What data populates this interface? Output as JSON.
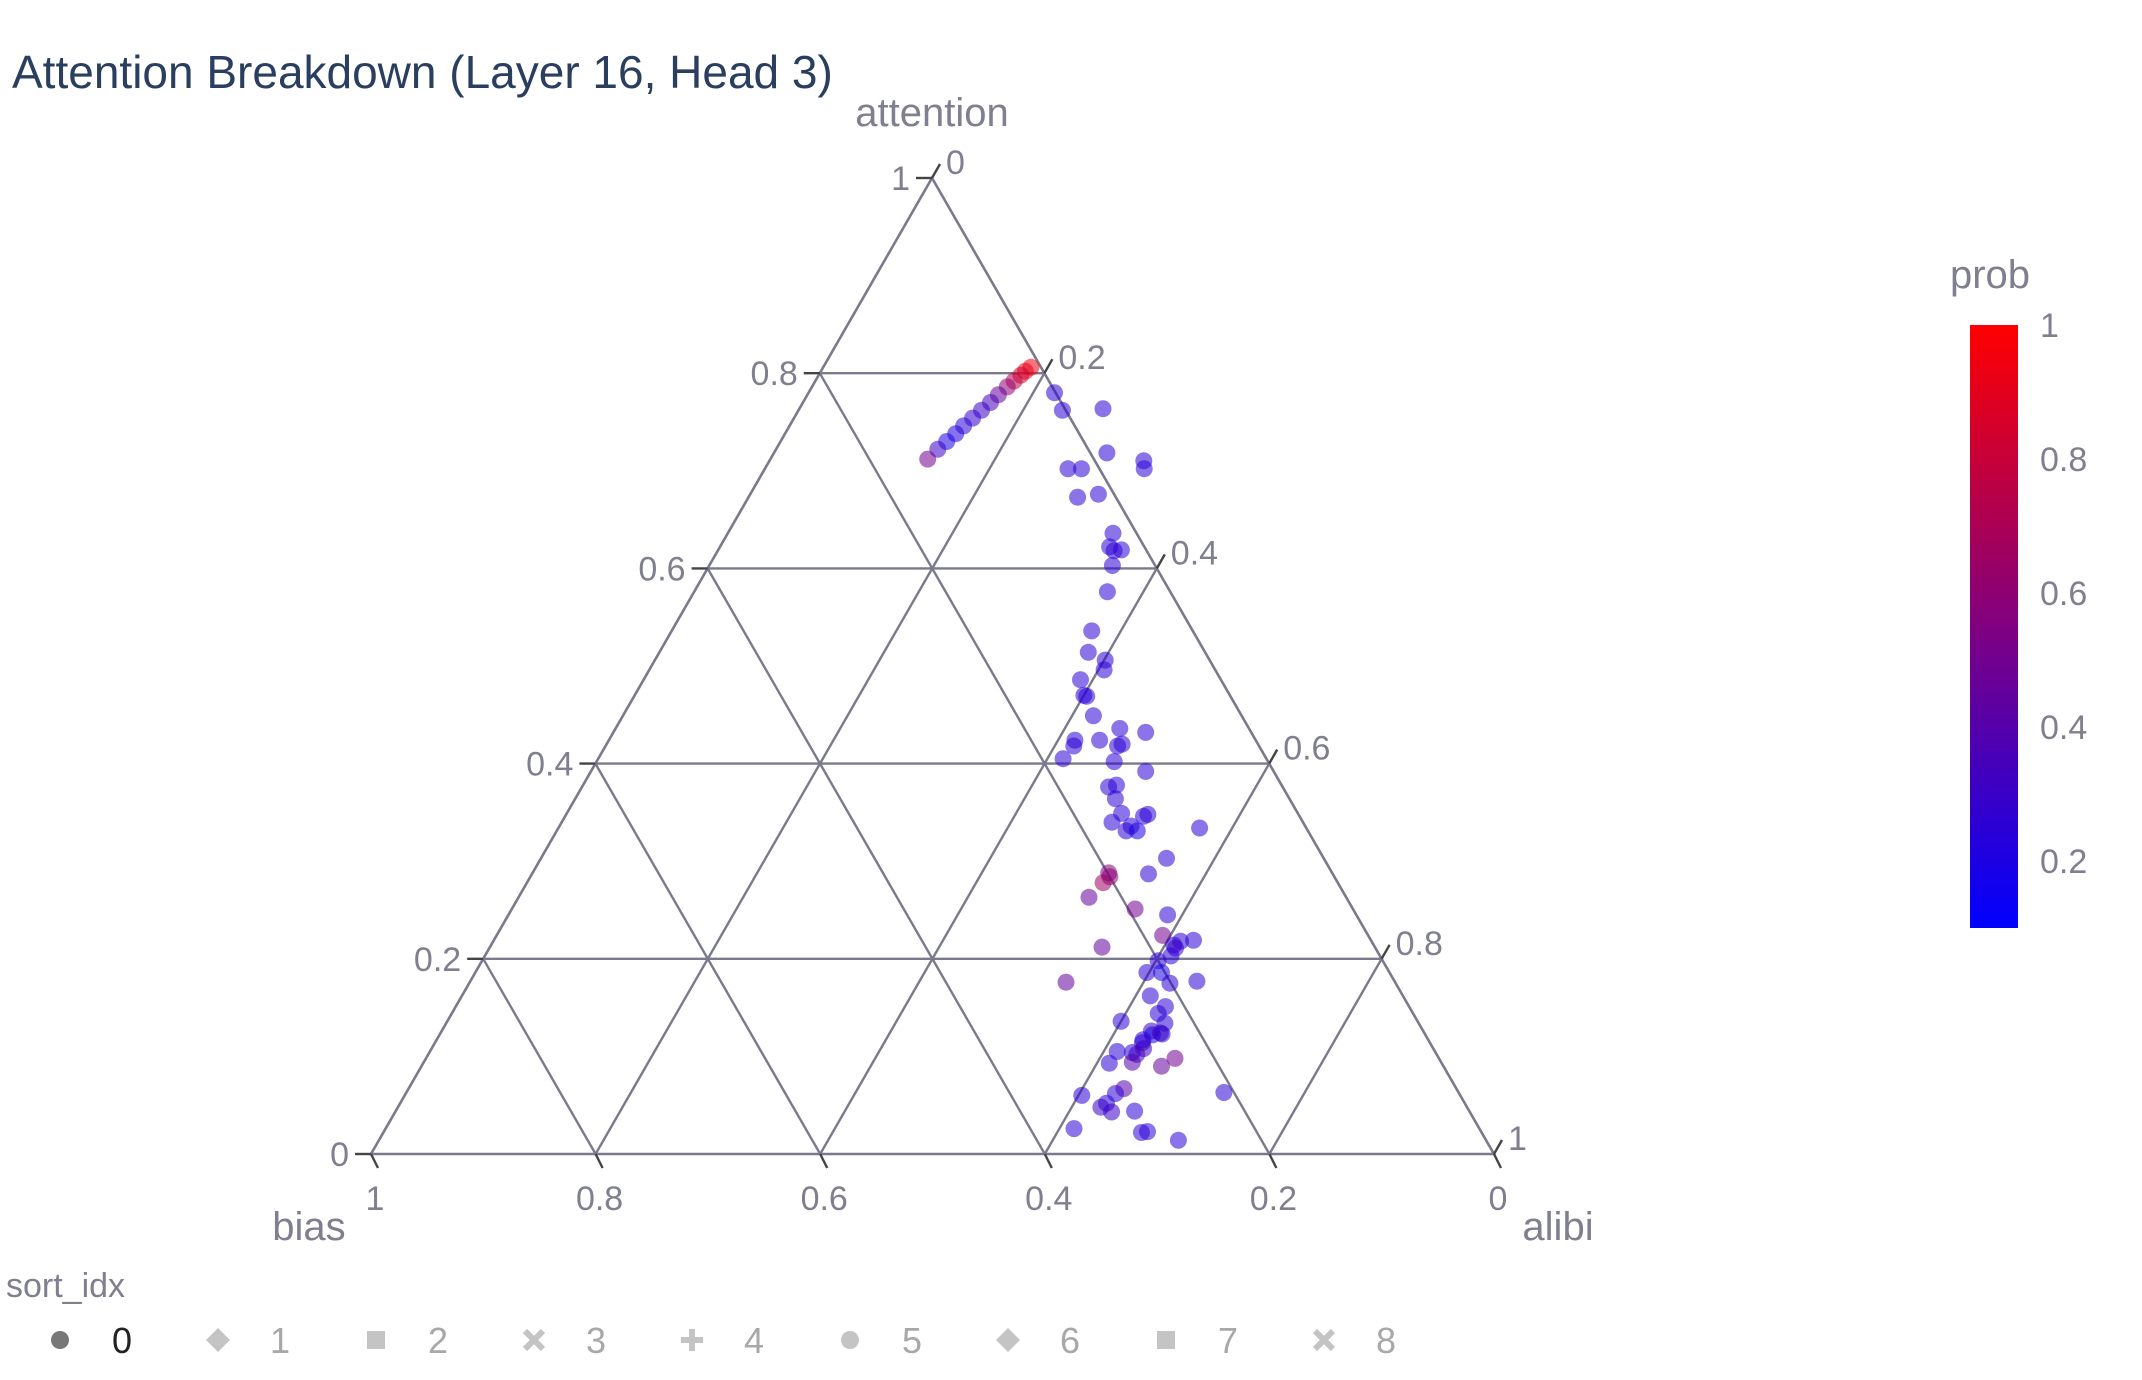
{
  "chart_data": {
    "type": "scatter",
    "subtype": "ternary",
    "title": "Attention Breakdown (Layer 16, Head 3)",
    "axes": {
      "a": {
        "label": "attention",
        "range": [
          0,
          1
        ]
      },
      "b": {
        "label": "bias",
        "range": [
          0,
          1
        ]
      },
      "c": {
        "label": "alibi",
        "range": [
          0,
          1
        ]
      }
    },
    "ticks": {
      "a": [
        "0",
        "0.2",
        "0.4",
        "0.6",
        "0.8",
        "1"
      ],
      "b": [
        "1",
        "0.8",
        "0.6",
        "0.4",
        "0.2",
        "0"
      ],
      "c": [
        "0",
        "0.2",
        "0.4",
        "0.6",
        "0.8",
        "1"
      ]
    },
    "grid": true,
    "colorbar": {
      "title": "prob",
      "range": [
        0.1,
        1
      ],
      "ticks": [
        "1",
        "0.8",
        "0.6",
        "0.4",
        "0.2"
      ],
      "tick_values": [
        1,
        0.8,
        0.6,
        0.4,
        0.2
      ],
      "colors": [
        "#0000ff",
        "#ff0000"
      ]
    },
    "legend": {
      "title": "sort_idx",
      "placement": "bottom-left",
      "items": [
        {
          "label": "0",
          "symbol": "circle",
          "active": true
        },
        {
          "label": "1",
          "symbol": "diamond",
          "active": false
        },
        {
          "label": "2",
          "symbol": "square",
          "active": false
        },
        {
          "label": "3",
          "symbol": "x",
          "active": false
        },
        {
          "label": "4",
          "symbol": "cross",
          "active": false
        },
        {
          "label": "5",
          "symbol": "circle",
          "active": false
        },
        {
          "label": "6",
          "symbol": "diamond",
          "active": false
        },
        {
          "label": "7",
          "symbol": "square",
          "active": false
        },
        {
          "label": "8",
          "symbol": "x",
          "active": false
        }
      ]
    },
    "points": [
      {
        "a": 0.806,
        "c": 0.185,
        "prob": 0.95
      },
      {
        "a": 0.802,
        "c": 0.182,
        "prob": 0.9
      },
      {
        "a": 0.798,
        "c": 0.18,
        "prob": 0.85
      },
      {
        "a": 0.792,
        "c": 0.177,
        "prob": 0.75
      },
      {
        "a": 0.786,
        "c": 0.174,
        "prob": 0.6
      },
      {
        "a": 0.778,
        "c": 0.17,
        "prob": 0.45
      },
      {
        "a": 0.77,
        "c": 0.167,
        "prob": 0.35
      },
      {
        "a": 0.762,
        "c": 0.163,
        "prob": 0.3
      },
      {
        "a": 0.754,
        "c": 0.159,
        "prob": 0.28
      },
      {
        "a": 0.746,
        "c": 0.155,
        "prob": 0.25
      },
      {
        "a": 0.738,
        "c": 0.152,
        "prob": 0.22
      },
      {
        "a": 0.73,
        "c": 0.148,
        "prob": 0.2
      },
      {
        "a": 0.722,
        "c": 0.144,
        "prob": 0.3
      },
      {
        "a": 0.712,
        "c": 0.14,
        "prob": 0.5
      },
      {
        "a": 0.818,
        "c": 0.228,
        "prob": 0.25
      },
      {
        "a": 0.78,
        "c": 0.219,
        "prob": 0.25
      },
      {
        "a": 0.78,
        "c": 0.279,
        "prob": 0.25
      },
      {
        "a": 0.762,
        "c": 0.235,
        "prob": 0.25
      },
      {
        "a": 0.766,
        "c": 0.288,
        "prob": 0.25
      },
      {
        "a": 0.742,
        "c": 0.278,
        "prob": 0.25
      },
      {
        "a": 0.702,
        "c": 0.27,
        "prob": 0.25
      },
      {
        "a": 0.702,
        "c": 0.282,
        "prob": 0.25
      },
      {
        "a": 0.673,
        "c": 0.293,
        "prob": 0.25
      },
      {
        "a": 0.676,
        "c": 0.31,
        "prob": 0.25
      },
      {
        "a": 0.636,
        "c": 0.343,
        "prob": 0.25
      },
      {
        "a": 0.622,
        "c": 0.347,
        "prob": 0.25
      },
      {
        "a": 0.618,
        "c": 0.353,
        "prob": 0.25
      },
      {
        "a": 0.619,
        "c": 0.359,
        "prob": 0.25
      },
      {
        "a": 0.603,
        "c": 0.359,
        "prob": 0.25
      },
      {
        "a": 0.576,
        "c": 0.368,
        "prob": 0.25
      },
      {
        "a": 0.536,
        "c": 0.374,
        "prob": 0.25
      },
      {
        "a": 0.514,
        "c": 0.382,
        "prob": 0.25
      },
      {
        "a": 0.486,
        "c": 0.389,
        "prob": 0.25
      },
      {
        "a": 0.506,
        "c": 0.401,
        "prob": 0.25
      },
      {
        "a": 0.496,
        "c": 0.405,
        "prob": 0.25
      },
      {
        "a": 0.47,
        "c": 0.4,
        "prob": 0.25
      },
      {
        "a": 0.469,
        "c": 0.403,
        "prob": 0.25
      },
      {
        "a": 0.449,
        "c": 0.419,
        "prob": 0.25
      },
      {
        "a": 0.424,
        "c": 0.415,
        "prob": 0.25
      },
      {
        "a": 0.418,
        "c": 0.417,
        "prob": 0.25
      },
      {
        "a": 0.405,
        "c": 0.414,
        "prob": 0.25
      },
      {
        "a": 0.424,
        "c": 0.437,
        "prob": 0.25
      },
      {
        "a": 0.436,
        "c": 0.449,
        "prob": 0.25
      },
      {
        "a": 0.432,
        "c": 0.474,
        "prob": 0.25
      },
      {
        "a": 0.418,
        "c": 0.456,
        "prob": 0.25
      },
      {
        "a": 0.42,
        "c": 0.459,
        "prob": 0.25
      },
      {
        "a": 0.402,
        "c": 0.461,
        "prob": 0.25
      },
      {
        "a": 0.392,
        "c": 0.494,
        "prob": 0.25
      },
      {
        "a": 0.376,
        "c": 0.469,
        "prob": 0.25
      },
      {
        "a": 0.378,
        "c": 0.475,
        "prob": 0.25
      },
      {
        "a": 0.364,
        "c": 0.481,
        "prob": 0.25
      },
      {
        "a": 0.349,
        "c": 0.494,
        "prob": 0.25
      },
      {
        "a": 0.34,
        "c": 0.49,
        "prob": 0.25
      },
      {
        "a": 0.336,
        "c": 0.509,
        "prob": 0.25
      },
      {
        "a": 0.346,
        "c": 0.515,
        "prob": 0.25
      },
      {
        "a": 0.331,
        "c": 0.507,
        "prob": 0.25
      },
      {
        "a": 0.348,
        "c": 0.518,
        "prob": 0.25
      },
      {
        "a": 0.331,
        "c": 0.517,
        "prob": 0.2
      },
      {
        "a": 0.288,
        "c": 0.513,
        "prob": 0.55
      },
      {
        "a": 0.278,
        "c": 0.513,
        "prob": 0.65
      },
      {
        "a": 0.284,
        "c": 0.516,
        "prob": 0.6
      },
      {
        "a": 0.263,
        "c": 0.508,
        "prob": 0.45
      },
      {
        "a": 0.303,
        "c": 0.557,
        "prob": 0.25
      },
      {
        "a": 0.334,
        "c": 0.571,
        "prob": 0.25
      },
      {
        "a": 0.287,
        "c": 0.549,
        "prob": 0.25
      },
      {
        "a": 0.251,
        "c": 0.555,
        "prob": 0.5
      },
      {
        "a": 0.212,
        "c": 0.545,
        "prob": 0.45
      },
      {
        "a": 0.176,
        "c": 0.531,
        "prob": 0.45
      },
      {
        "a": 0.245,
        "c": 0.587,
        "prob": 0.25
      },
      {
        "a": 0.224,
        "c": 0.593,
        "prob": 0.5
      },
      {
        "a": 0.214,
        "c": 0.608,
        "prob": 0.25
      },
      {
        "a": 0.218,
        "c": 0.612,
        "prob": 0.25
      },
      {
        "a": 0.211,
        "c": 0.611,
        "prob": 0.3
      },
      {
        "a": 0.203,
        "c": 0.611,
        "prob": 0.25
      },
      {
        "a": 0.219,
        "c": 0.623,
        "prob": 0.25
      },
      {
        "a": 0.198,
        "c": 0.602,
        "prob": 0.25
      },
      {
        "a": 0.186,
        "c": 0.598,
        "prob": 0.25
      },
      {
        "a": 0.186,
        "c": 0.611,
        "prob": 0.2
      },
      {
        "a": 0.175,
        "c": 0.624,
        "prob": 0.25
      },
      {
        "a": 0.177,
        "c": 0.647,
        "prob": 0.25
      },
      {
        "a": 0.162,
        "c": 0.613,
        "prob": 0.25
      },
      {
        "a": 0.151,
        "c": 0.632,
        "prob": 0.25
      },
      {
        "a": 0.136,
        "c": 0.6,
        "prob": 0.25
      },
      {
        "a": 0.144,
        "c": 0.629,
        "prob": 0.25
      },
      {
        "a": 0.126,
        "c": 0.632,
        "prob": 0.3
      },
      {
        "a": 0.134,
        "c": 0.64,
        "prob": 0.25
      },
      {
        "a": 0.122,
        "c": 0.635,
        "prob": 0.2
      },
      {
        "a": 0.124,
        "c": 0.641,
        "prob": 0.35
      },
      {
        "a": 0.104,
        "c": 0.626,
        "prob": 0.25
      },
      {
        "a": 0.114,
        "c": 0.63,
        "prob": 0.25
      },
      {
        "a": 0.102,
        "c": 0.631,
        "prob": 0.3
      },
      {
        "a": 0.108,
        "c": 0.634,
        "prob": 0.35
      },
      {
        "a": 0.094,
        "c": 0.631,
        "prob": 0.4
      },
      {
        "a": 0.117,
        "c": 0.629,
        "prob": 0.25
      },
      {
        "a": 0.09,
        "c": 0.659,
        "prob": 0.45
      },
      {
        "a": 0.105,
        "c": 0.612,
        "prob": 0.25
      },
      {
        "a": 0.123,
        "c": 0.643,
        "prob": 0.25
      },
      {
        "a": 0.093,
        "c": 0.611,
        "prob": 0.25
      },
      {
        "a": 0.098,
        "c": 0.667,
        "prob": 0.5
      },
      {
        "a": 0.067,
        "c": 0.637,
        "prob": 0.4
      },
      {
        "a": 0.052,
        "c": 0.629,
        "prob": 0.25
      },
      {
        "a": 0.044,
        "c": 0.658,
        "prob": 0.25
      },
      {
        "a": 0.06,
        "c": 0.603,
        "prob": 0.25
      },
      {
        "a": 0.048,
        "c": 0.626,
        "prob": 0.3
      },
      {
        "a": 0.043,
        "c": 0.638,
        "prob": 0.3
      },
      {
        "a": 0.062,
        "c": 0.632,
        "prob": 0.25
      },
      {
        "a": 0.026,
        "c": 0.613,
        "prob": 0.25
      },
      {
        "a": 0.022,
        "c": 0.675,
        "prob": 0.25
      },
      {
        "a": 0.023,
        "c": 0.68,
        "prob": 0.25
      },
      {
        "a": 0.063,
        "c": 0.728,
        "prob": 0.25
      },
      {
        "a": 0.014,
        "c": 0.712,
        "prob": 0.25
      }
    ]
  }
}
